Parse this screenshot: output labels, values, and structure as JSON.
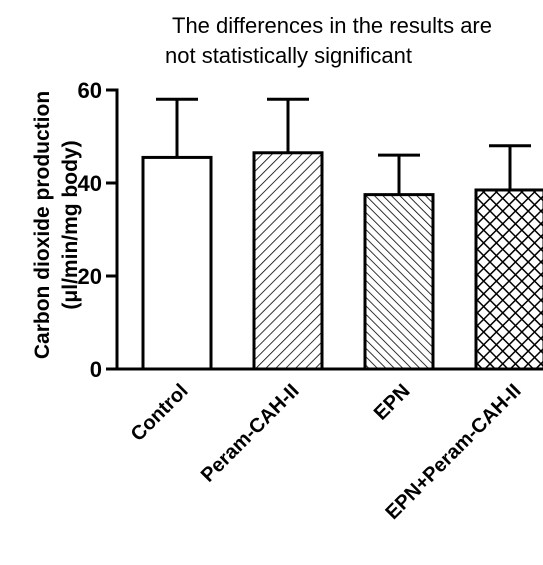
{
  "chart_data": {
    "type": "bar",
    "title": "The differences in the results are not statistically significant",
    "title_lines": [
      "The differences in the results are",
      "not statistically significant"
    ],
    "xlabel": "",
    "ylabel": "Carbon dioxide production",
    "ylabel_unit": "(μl/min/mg body)",
    "ylim": [
      0,
      60
    ],
    "yticks": [
      0,
      20,
      40,
      60
    ],
    "categories": [
      "Control",
      "Peram-CAH-II",
      "EPN",
      "EPN+Peram-CAH-II"
    ],
    "values": [
      45.5,
      46.5,
      37.5,
      38.5
    ],
    "errors": [
      12.5,
      11.5,
      8.5,
      9.5
    ],
    "bar_fills": [
      "solid",
      "hatch-right",
      "hatch-left",
      "crosshatch"
    ],
    "grid": false,
    "legend": "none"
  }
}
